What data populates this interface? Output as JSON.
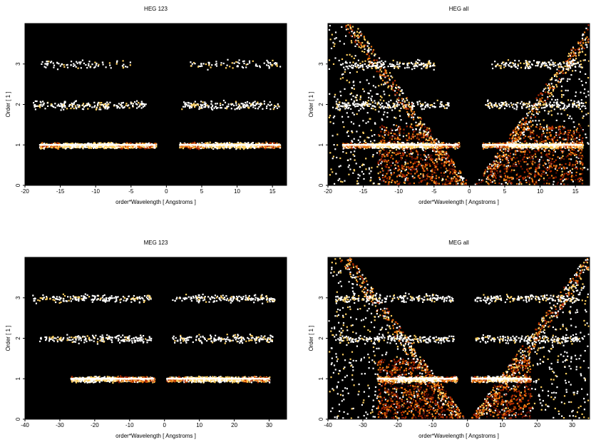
{
  "chart_data": [
    {
      "type": "heatmap",
      "title": "HEG 123",
      "xlabel": "order*Wavelength [ Angstroms ]",
      "ylabel": "Order [ 1 ]",
      "xlim": [
        -20,
        17
      ],
      "ylim": [
        0,
        4
      ],
      "xticks": [
        -20,
        -15,
        -10,
        -5,
        0,
        5,
        10,
        15
      ],
      "yticks": [
        0,
        1,
        2,
        3
      ],
      "colormap": [
        "#000000",
        "#5a0a00",
        "#b02a00",
        "#f07a10",
        "#ffd060",
        "#ffffff"
      ],
      "bands": [
        {
          "order": 1,
          "x_ranges": [
            [
              -18,
              -1.5
            ],
            [
              1.8,
              16
            ]
          ],
          "peak_x": [
            -11,
            9
          ],
          "intensity": "high"
        },
        {
          "order": 2,
          "x_ranges": [
            [
              -19,
              -3
            ],
            [
              2,
              16
            ]
          ],
          "intensity": "low"
        },
        {
          "order": 3,
          "x_ranges": [
            [
              -18,
              -5
            ],
            [
              3,
              16
            ]
          ],
          "intensity": "very low"
        }
      ]
    },
    {
      "type": "heatmap",
      "title": "HEG all",
      "xlabel": "order*Wavelength [ Angstroms ]",
      "ylabel": "Order [ 1 ]",
      "xlim": [
        -20,
        17
      ],
      "ylim": [
        0,
        4
      ],
      "xticks": [
        -20,
        -15,
        -10,
        -5,
        0,
        5,
        10,
        15
      ],
      "yticks": [
        0,
        1,
        2,
        3
      ],
      "colormap": [
        "#000000",
        "#5a0a00",
        "#b02a00",
        "#f07a10",
        "#ffd060",
        "#ffffff"
      ],
      "bands": [
        {
          "order": 1,
          "x_ranges": [
            [
              -18,
              -1.5
            ],
            [
              1.8,
              16
            ]
          ],
          "intensity": "high"
        },
        {
          "order": 2,
          "x_ranges": [
            [
              -19,
              -3
            ],
            [
              2,
              16
            ]
          ],
          "intensity": "low"
        },
        {
          "order": 3,
          "x_ranges": [
            [
              -18,
              -5
            ],
            [
              3,
              16
            ]
          ],
          "intensity": "low"
        }
      ],
      "background": {
        "level": "medium",
        "dense_box": {
          "x": [
            -13,
            16
          ],
          "y": [
            0,
            1.5
          ]
        },
        "empty_wedge_center_x": 0.3
      }
    },
    {
      "type": "heatmap",
      "title": "MEG 123",
      "xlabel": "order*Wavelength [ Angstroms ]",
      "ylabel": "Order [ 1 ]",
      "xlim": [
        -40,
        35
      ],
      "ylim": [
        0,
        4
      ],
      "xticks": [
        -40,
        -30,
        -20,
        -10,
        0,
        10,
        20,
        30
      ],
      "yticks": [
        0,
        1,
        2,
        3
      ],
      "colormap": [
        "#000000",
        "#5a0a00",
        "#b02a00",
        "#f07a10",
        "#ffd060",
        "#ffffff"
      ],
      "bands": [
        {
          "order": 1,
          "x_ranges": [
            [
              -27,
              -3
            ],
            [
              0.5,
              30
            ]
          ],
          "peak_x": [
            -20,
            14
          ],
          "intensity": "high"
        },
        {
          "order": 2,
          "x_ranges": [
            [
              -36,
              -4
            ],
            [
              2,
              31
            ]
          ],
          "intensity": "low"
        },
        {
          "order": 3,
          "x_ranges": [
            [
              -38,
              -4
            ],
            [
              2,
              32
            ]
          ],
          "intensity": "low"
        }
      ]
    },
    {
      "type": "heatmap",
      "title": "MEG all",
      "xlabel": "order*Wavelength [ Angstroms ]",
      "ylabel": "Order [ 1 ]",
      "xlim": [
        -40,
        35
      ],
      "ylim": [
        0,
        4
      ],
      "xticks": [
        -40,
        -30,
        -20,
        -10,
        0,
        10,
        20,
        30
      ],
      "yticks": [
        0,
        1,
        2,
        3
      ],
      "colormap": [
        "#000000",
        "#5a0a00",
        "#b02a00",
        "#f07a10",
        "#ffd060",
        "#ffffff"
      ],
      "bands": [
        {
          "order": 1,
          "x_ranges": [
            [
              -26,
              -3
            ],
            [
              1,
              18
            ]
          ],
          "intensity": "high"
        },
        {
          "order": 2,
          "x_ranges": [
            [
              -38,
              -4
            ],
            [
              2,
              32
            ]
          ],
          "intensity": "low"
        },
        {
          "order": 3,
          "x_ranges": [
            [
              -38,
              -4
            ],
            [
              2,
              32
            ]
          ],
          "intensity": "low"
        }
      ],
      "background": {
        "level": "medium",
        "dense_box": {
          "x": [
            -26,
            18
          ],
          "y": [
            0,
            1.5
          ]
        },
        "empty_wedge_center_x": 0
      }
    }
  ]
}
